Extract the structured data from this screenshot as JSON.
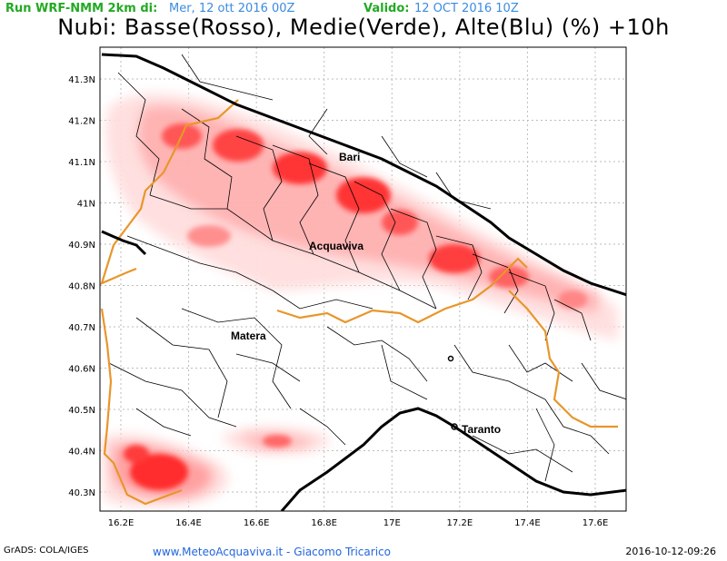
{
  "header": {
    "run_label": "Run WRF-NMM 2km di:",
    "run_date": "Mer, 12 ott 2016 00Z",
    "valid_label": "Valido:",
    "valid_date": "12 OCT 2016 10Z",
    "title": "Nubi: Basse(Rosso), Medie(Verde), Alte(Blu) (%) +10h"
  },
  "axes": {
    "lat_labels": [
      "41.3N",
      "41.2N",
      "41.1N",
      "41N",
      "40.9N",
      "40.8N",
      "40.7N",
      "40.6N",
      "40.5N",
      "40.4N",
      "40.3N"
    ],
    "lat_values": [
      41.3,
      41.2,
      41.1,
      41.0,
      40.9,
      40.8,
      40.7,
      40.6,
      40.5,
      40.4,
      40.3
    ],
    "lon_labels": [
      "16.2E",
      "16.4E",
      "16.6E",
      "16.8E",
      "17E",
      "17.2E",
      "17.4E",
      "17.6E"
    ],
    "lon_values": [
      16.2,
      16.4,
      16.6,
      16.8,
      17.0,
      17.2,
      17.4,
      17.6
    ]
  },
  "cities": [
    {
      "name": "Bari"
    },
    {
      "name": "Acquaviva"
    },
    {
      "name": "Matera"
    },
    {
      "name": "Taranto"
    }
  ],
  "footer": {
    "grads": "GrADS: COLA/IGES",
    "site": "www.MeteoAcquaviva.it - Giacomo Tricarico",
    "timestamp": "2016-10-12-09:26"
  },
  "colors": {
    "low_cloud": "#ff2a2a",
    "coastline": "#000000",
    "region_border": "#e8962a",
    "municipal_border": "#000000",
    "grid": "#bbbbbb"
  }
}
